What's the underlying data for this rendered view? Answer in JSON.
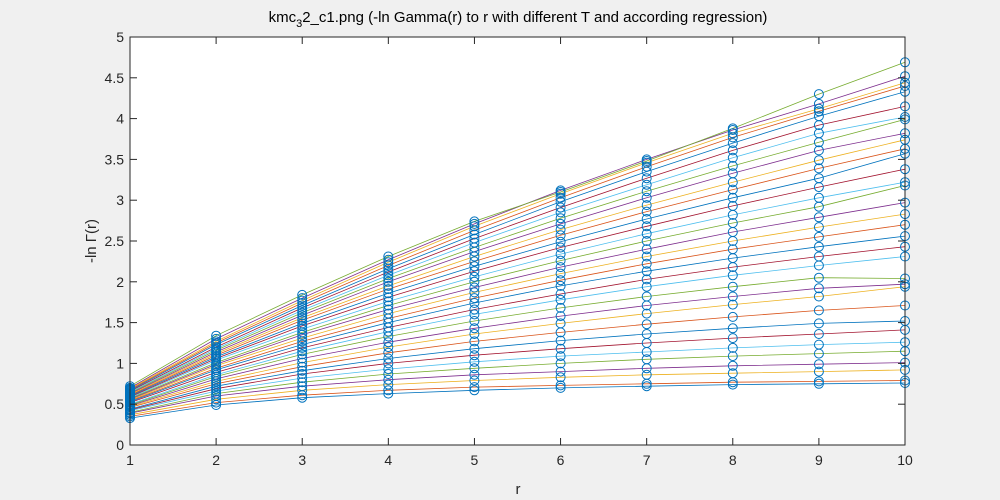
{
  "chart_data": {
    "type": "line",
    "title_main": "kmc",
    "title_sub1": "3",
    "title_mid": "2",
    "title_sub2": "",
    "title_rest": "_c1.png (-ln Gamma(r) to r with different T and according regression)",
    "xlabel": "r",
    "ylabel": "-ln Γ(r)",
    "xlim": [
      1,
      10
    ],
    "ylim": [
      0,
      5
    ],
    "xticks": [
      "1",
      "2",
      "3",
      "4",
      "5",
      "6",
      "7",
      "8",
      "9",
      "10"
    ],
    "yticks": [
      "0",
      "0.5",
      "1",
      "1.5",
      "2",
      "2.5",
      "3",
      "3.5",
      "4",
      "4.5",
      "5"
    ],
    "grid": false,
    "marker": "circle",
    "marker_color": "#0072BD",
    "series_colors": [
      "#0072BD",
      "#D95319",
      "#EDB120",
      "#7E2F8E",
      "#77AC30",
      "#4DBEEE",
      "#A2142F"
    ],
    "x": [
      1,
      2,
      3,
      4,
      5,
      6,
      7,
      8,
      9,
      10
    ],
    "series": [
      {
        "values": [
          0.33,
          0.49,
          0.58,
          0.63,
          0.67,
          0.7,
          0.72,
          0.74,
          0.75,
          0.76
        ]
      },
      {
        "values": [
          0.35,
          0.52,
          0.61,
          0.67,
          0.71,
          0.73,
          0.75,
          0.77,
          0.78,
          0.79
        ]
      },
      {
        "values": [
          0.37,
          0.56,
          0.67,
          0.74,
          0.79,
          0.83,
          0.86,
          0.88,
          0.9,
          0.92
        ]
      },
      {
        "values": [
          0.39,
          0.6,
          0.72,
          0.8,
          0.86,
          0.9,
          0.94,
          0.97,
          0.99,
          1.01
        ]
      },
      {
        "values": [
          0.4,
          0.63,
          0.77,
          0.87,
          0.94,
          1.0,
          1.05,
          1.09,
          1.12,
          1.15
        ]
      },
      {
        "values": [
          0.42,
          0.66,
          0.82,
          0.93,
          1.02,
          1.09,
          1.14,
          1.19,
          1.23,
          1.26
        ]
      },
      {
        "values": [
          0.43,
          0.69,
          0.87,
          1.0,
          1.1,
          1.18,
          1.25,
          1.31,
          1.36,
          1.41
        ]
      },
      {
        "values": [
          0.44,
          0.72,
          0.91,
          1.06,
          1.18,
          1.28,
          1.36,
          1.43,
          1.49,
          1.52
        ]
      },
      {
        "values": [
          0.46,
          0.75,
          0.96,
          1.13,
          1.27,
          1.38,
          1.48,
          1.57,
          1.65,
          1.71
        ]
      },
      {
        "values": [
          0.47,
          0.78,
          1.01,
          1.2,
          1.36,
          1.49,
          1.61,
          1.72,
          1.82,
          1.94
        ]
      },
      {
        "values": [
          0.48,
          0.81,
          1.06,
          1.26,
          1.43,
          1.58,
          1.71,
          1.82,
          1.92,
          1.97
        ]
      },
      {
        "values": [
          0.49,
          0.84,
          1.11,
          1.33,
          1.52,
          1.68,
          1.82,
          1.94,
          2.05,
          2.04
        ]
      },
      {
        "values": [
          0.5,
          0.86,
          1.15,
          1.39,
          1.6,
          1.78,
          1.94,
          2.08,
          2.2,
          2.31
        ]
      },
      {
        "values": [
          0.52,
          0.89,
          1.19,
          1.44,
          1.66,
          1.85,
          2.03,
          2.18,
          2.31,
          2.43
        ]
      },
      {
        "values": [
          0.53,
          0.92,
          1.23,
          1.5,
          1.74,
          1.95,
          2.13,
          2.29,
          2.43,
          2.56
        ]
      },
      {
        "values": [
          0.54,
          0.94,
          1.27,
          1.55,
          1.8,
          2.02,
          2.22,
          2.4,
          2.55,
          2.7
        ]
      },
      {
        "values": [
          0.55,
          0.97,
          1.31,
          1.61,
          1.87,
          2.1,
          2.31,
          2.5,
          2.67,
          2.83
        ]
      },
      {
        "values": [
          0.56,
          0.99,
          1.35,
          1.66,
          1.93,
          2.18,
          2.4,
          2.61,
          2.79,
          2.97
        ]
      },
      {
        "values": [
          0.57,
          1.01,
          1.38,
          1.71,
          2.0,
          2.26,
          2.5,
          2.72,
          2.92,
          3.18
        ]
      },
      {
        "values": [
          0.58,
          1.04,
          1.42,
          1.76,
          2.06,
          2.34,
          2.59,
          2.82,
          3.03,
          3.22
        ]
      },
      {
        "values": [
          0.59,
          1.06,
          1.46,
          1.81,
          2.13,
          2.42,
          2.68,
          2.93,
          3.16,
          3.38
        ]
      },
      {
        "values": [
          0.6,
          1.08,
          1.49,
          1.86,
          2.19,
          2.49,
          2.77,
          3.03,
          3.27,
          3.57
        ]
      },
      {
        "values": [
          0.61,
          1.1,
          1.53,
          1.91,
          2.25,
          2.57,
          2.86,
          3.13,
          3.39,
          3.63
        ]
      },
      {
        "values": [
          0.62,
          1.12,
          1.56,
          1.95,
          2.31,
          2.64,
          2.94,
          3.22,
          3.49,
          3.74
        ]
      },
      {
        "values": [
          0.63,
          1.14,
          1.59,
          2.0,
          2.37,
          2.71,
          3.03,
          3.33,
          3.61,
          3.82
        ]
      },
      {
        "values": [
          0.64,
          1.16,
          1.62,
          2.04,
          2.42,
          2.78,
          3.11,
          3.42,
          3.71,
          3.99
        ]
      },
      {
        "values": [
          0.65,
          1.18,
          1.65,
          2.08,
          2.48,
          2.85,
          3.19,
          3.52,
          3.82,
          4.02
        ]
      },
      {
        "values": [
          0.66,
          1.2,
          1.68,
          2.12,
          2.53,
          2.91,
          3.27,
          3.61,
          3.92,
          4.15
        ]
      },
      {
        "values": [
          0.67,
          1.23,
          1.71,
          2.16,
          2.58,
          2.98,
          3.35,
          3.7,
          4.03,
          4.33
        ]
      },
      {
        "values": [
          0.68,
          1.25,
          1.74,
          2.2,
          2.63,
          3.03,
          3.41,
          3.77,
          4.09,
          4.4
        ]
      },
      {
        "values": [
          0.69,
          1.27,
          1.77,
          2.24,
          2.68,
          3.08,
          3.46,
          3.82,
          4.12,
          4.44
        ]
      },
      {
        "values": [
          0.7,
          1.3,
          1.8,
          2.27,
          2.71,
          3.12,
          3.5,
          3.86,
          4.18,
          4.52
        ]
      },
      {
        "values": [
          0.72,
          1.34,
          1.84,
          2.31,
          2.74,
          3.1,
          3.48,
          3.88,
          4.3,
          4.69
        ]
      }
    ]
  }
}
